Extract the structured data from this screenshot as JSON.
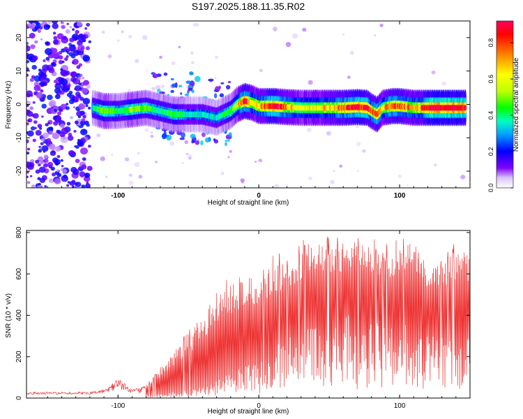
{
  "chart_data": [
    {
      "type": "heatmap",
      "title": "S197.2025.188.11.35.R02",
      "xlabel": "Height of straight line (km)",
      "ylabel": "Frequency (Hz)",
      "xlim": [
        -165,
        150
      ],
      "ylim": [
        -25,
        25
      ],
      "xticks": [
        -100,
        0,
        100
      ],
      "yticks": [
        -20,
        -10,
        0,
        10,
        20
      ],
      "colorbar": {
        "label": "Normalized spectral amplitude",
        "range": [
          0,
          0.92
        ],
        "ticks": [
          0.0,
          0.2,
          0.4,
          0.6,
          0.8
        ],
        "colors": [
          "#ffffff",
          "#8000ff",
          "#0000ff",
          "#00a0ff",
          "#00ffc0",
          "#00ff00",
          "#c0ff00",
          "#ffff00",
          "#ff8000",
          "#ff0000",
          "#ff0060"
        ]
      },
      "ridge": {
        "x": [
          -118,
          -110,
          -100,
          -90,
          -80,
          -70,
          -60,
          -50,
          -40,
          -30,
          -20,
          -15,
          -10,
          -5,
          0,
          10,
          20,
          30,
          40,
          50,
          60,
          70,
          77,
          80,
          84,
          88,
          95,
          100,
          110,
          115,
          120,
          130,
          140,
          147
        ],
        "freq": [
          -1,
          -2,
          -2,
          -1.5,
          -1,
          -2,
          -3,
          -3,
          -3,
          -4,
          -2,
          0,
          1,
          0.5,
          -0.5,
          -0.5,
          -0.8,
          -1,
          -1,
          -1,
          -1,
          -0.8,
          -1,
          -2,
          -3,
          -1,
          -0.5,
          -0.5,
          -1,
          -1,
          -1,
          -1,
          -1,
          -1
        ],
        "amp": [
          0.35,
          0.5,
          0.4,
          0.5,
          0.45,
          0.4,
          0.45,
          0.35,
          0.35,
          0.35,
          0.45,
          0.6,
          0.9,
          0.6,
          0.7,
          0.9,
          0.7,
          0.6,
          0.6,
          0.7,
          0.75,
          0.9,
          0.9,
          0.7,
          0.8,
          0.6,
          0.85,
          0.75,
          0.7,
          0.7,
          0.9,
          0.95,
          0.95,
          0.9
        ]
      },
      "scatter_region": {
        "x": [
          -165,
          -120
        ],
        "freq": [
          -25,
          25
        ],
        "level": 0.12
      }
    },
    {
      "type": "line",
      "xlabel": "Height of straight line (km)",
      "ylabel": "SNR (10 * v/v)",
      "xlim": [
        -165,
        150
      ],
      "ylim": [
        0,
        810
      ],
      "xticks": [
        -100,
        0,
        100
      ],
      "yticks": [
        0,
        200,
        400,
        600,
        800
      ],
      "color": "#ee3333",
      "envelope": {
        "x": [
          -165,
          -120,
          -108,
          -100,
          -90,
          -80,
          -70,
          -60,
          -50,
          -40,
          -30,
          -20,
          -10,
          0,
          10,
          20,
          30,
          40,
          50,
          60,
          70,
          80,
          90,
          100,
          110,
          115,
          120,
          130,
          140,
          150
        ],
        "upper": [
          30,
          30,
          45,
          100,
          40,
          60,
          140,
          230,
          310,
          400,
          480,
          560,
          600,
          560,
          650,
          650,
          700,
          750,
          730,
          720,
          760,
          720,
          690,
          720,
          780,
          700,
          630,
          650,
          720,
          700
        ],
        "lower": [
          12,
          12,
          14,
          20,
          14,
          15,
          20,
          30,
          40,
          60,
          90,
          120,
          160,
          200,
          250,
          300,
          330,
          360,
          380,
          400,
          400,
          380,
          360,
          350,
          360,
          350,
          340,
          320,
          300,
          300
        ]
      }
    }
  ]
}
